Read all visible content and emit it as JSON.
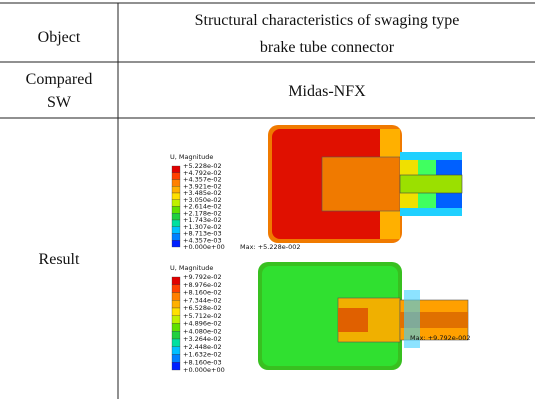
{
  "table": {
    "header": {
      "col1": "Object",
      "col2_line1": "Structural characteristics of swaging type",
      "col2_line2": "brake tube connector"
    },
    "row1": {
      "col1_line1": "Compared",
      "col1_line2": "SW",
      "col2": "Midas-NFX"
    },
    "row2": {
      "col1": "Result"
    }
  },
  "plots": [
    {
      "legend_title": "U, Magnitude",
      "legend_values": [
        "+5.228e-02",
        "+4.792e-02",
        "+4.357e-02",
        "+3.921e-02",
        "+3.485e-02",
        "+3.050e-02",
        "+2.614e-02",
        "+2.178e-02",
        "+1.743e-02",
        "+1.307e-02",
        "+8.713e-03",
        "+4.357e-03",
        "+0.000e+00"
      ],
      "max_label": "Max: +5.228e-002"
    },
    {
      "legend_title": "U, Magnitude",
      "legend_values": [
        "+9.792e-02",
        "+8.976e-02",
        "+8.160e-02",
        "+7.344e-02",
        "+6.528e-02",
        "+5.712e-02",
        "+4.896e-02",
        "+4.080e-02",
        "+3.264e-02",
        "+2.448e-02",
        "+1.632e-02",
        "+8.160e-03",
        "+0.000e+00"
      ],
      "max_label": "Max: +9.792e-002"
    }
  ]
}
